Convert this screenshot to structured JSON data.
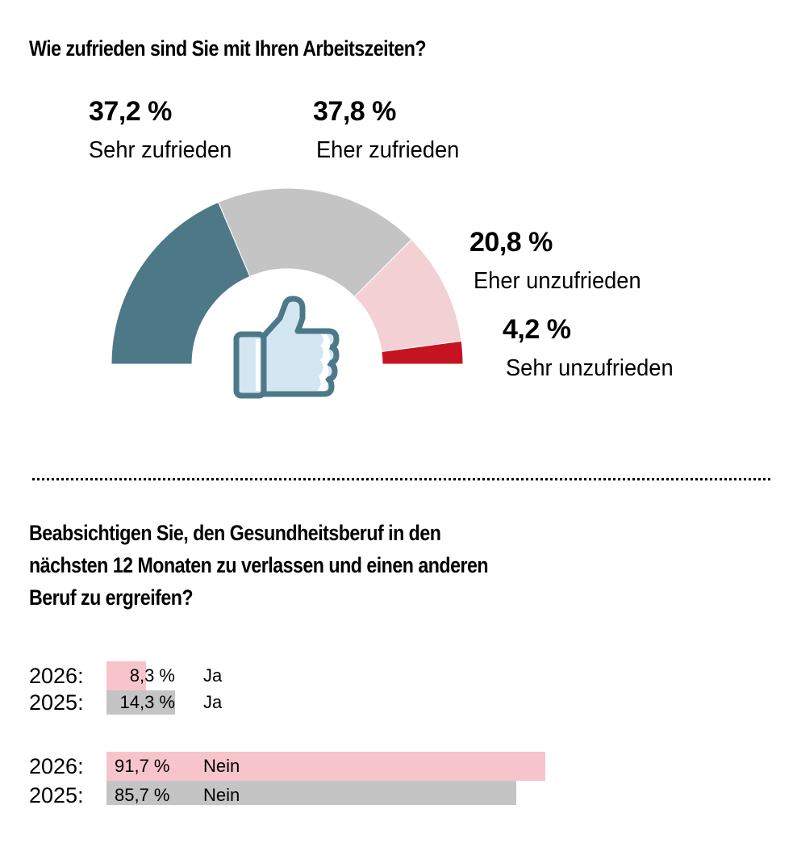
{
  "colors": {
    "sehr_zufrieden": "#4d7888",
    "eher_zufrieden": "#c4c4c4",
    "eher_unzufrieden": "#f2d0d4",
    "sehr_unzufrieden": "#c41422",
    "bar_2026": "#f7c4cc",
    "bar_2025": "#c4c4c4",
    "thumb_stroke": "#4d7888",
    "thumb_fill": "#d4e6f2"
  },
  "chart_data": [
    {
      "type": "pie",
      "variant": "half-donut",
      "title": "Wie zufrieden sind Sie mit Ihren Arbeitszeiten?",
      "icon": "thumbs-up-icon",
      "slices": [
        {
          "label": "Sehr zufrieden",
          "value": 37.2,
          "value_label": "37,2 %"
        },
        {
          "label": "Eher zufrieden",
          "value": 37.8,
          "value_label": "37,8 %"
        },
        {
          "label": "Eher unzufrieden",
          "value": 20.8,
          "value_label": "20,8 %"
        },
        {
          "label": "Sehr unzufrieden",
          "value": 4.2,
          "value_label": "4,2 %"
        }
      ]
    },
    {
      "type": "bar",
      "orientation": "horizontal",
      "title": "Beabsichtigen Sie, den Gesundheitsberuf in den nächsten 12 Monaten zu verlassen und einen anderen Beruf zu ergreifen?",
      "title_lines": [
        "Beabsichtigen Sie, den Gesundheitsberuf in den",
        "nächsten 12 Monaten zu verlassen und einen anderen",
        "Beruf zu ergreifen?"
      ],
      "xlim": [
        0,
        100
      ],
      "rows": [
        {
          "year_label": "2026:",
          "year": 2026,
          "answer": "Ja",
          "value": 8.3,
          "value_label": "8,3 %"
        },
        {
          "year_label": "2025:",
          "year": 2025,
          "answer": "Ja",
          "value": 14.3,
          "value_label": "14,3 %"
        },
        {
          "year_label": "2026:",
          "year": 2026,
          "answer": "Nein",
          "value": 91.7,
          "value_label": "91,7 %"
        },
        {
          "year_label": "2025:",
          "year": 2025,
          "answer": "Nein",
          "value": 85.7,
          "value_label": "85,7 %"
        }
      ]
    }
  ]
}
